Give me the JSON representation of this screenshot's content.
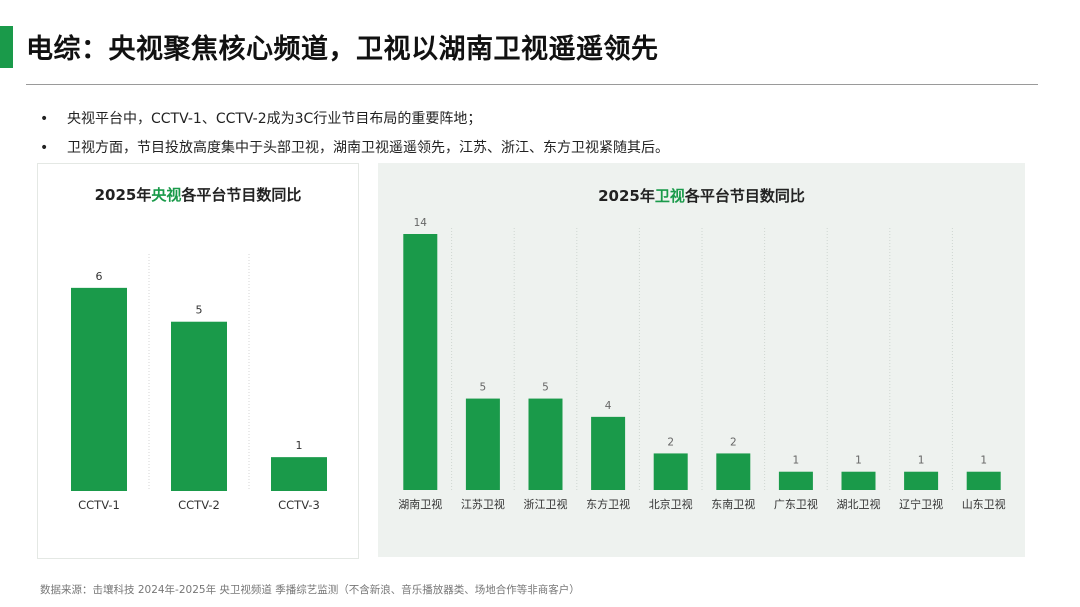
{
  "slide": {
    "title": "电综：央视聚焦核心频道，卫视以湖南卫视遥遥领先",
    "bullets": [
      "央视平台中，CCTV-1、CCTV-2成为3C行业节目布局的重要阵地；",
      "卫视方面，节目投放高度集中于头部卫视，湖南卫视遥遥领先，江苏、浙江、东方卫视紧随其后。"
    ],
    "bullet_symbol": "•",
    "source": "数据来源：击壤科技 2024年-2025年 央卫视频道 季播综艺监测（不含新浪、音乐播放器类、场地合作等非商客户）",
    "accent_color": "#1a9a4a"
  },
  "chart_data": [
    {
      "type": "bar",
      "title_prefix": "2025年",
      "title_highlight": "央视",
      "title_suffix": "各平台节目数同比",
      "categories": [
        "CCTV-1",
        "CCTV-2",
        "CCTV-3"
      ],
      "values": [
        6,
        5,
        1
      ],
      "ylim": [
        0,
        7
      ],
      "bar_color": "#1a9a4a",
      "grid": true
    },
    {
      "type": "bar",
      "title_prefix": "2025年",
      "title_highlight": "卫视",
      "title_suffix": "各平台节目数同比",
      "categories": [
        "湖南卫视",
        "江苏卫视",
        "浙江卫视",
        "东方卫视",
        "北京卫视",
        "东南卫视",
        "广东卫视",
        "湖北卫视",
        "辽宁卫视",
        "山东卫视"
      ],
      "values": [
        14,
        5,
        5,
        4,
        2,
        2,
        1,
        1,
        1,
        1
      ],
      "ylim": [
        0,
        14
      ],
      "bar_color": "#1a9a4a",
      "grid": true
    }
  ]
}
